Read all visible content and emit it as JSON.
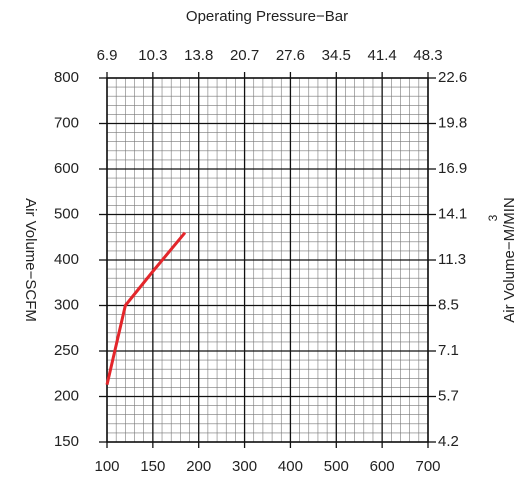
{
  "chart_data": {
    "type": "line",
    "x2label": "Operating Pressure−Bar",
    "ylabel": "Air Volume−SCFM",
    "y2label": "Air Volume−M/MIN",
    "y2label_sup": "3",
    "x": [
      100,
      120,
      150,
      185
    ],
    "series": [
      {
        "color": "#e3262b",
        "values": [
          213,
          300,
          375,
          460
        ]
      }
    ],
    "xlim": [
      100,
      700
    ],
    "xticks": [
      100,
      150,
      200,
      300,
      400,
      500,
      600,
      700
    ],
    "x2lim": [
      6.9,
      48.3
    ],
    "x2ticks": [
      6.9,
      10.3,
      13.8,
      20.7,
      27.6,
      34.5,
      41.4,
      48.3
    ],
    "ylim": [
      150,
      800
    ],
    "yticks": [
      150,
      200,
      250,
      300,
      400,
      500,
      600,
      700,
      800
    ],
    "y2lim": [
      4.2,
      22.6
    ],
    "y2ticks": [
      4.2,
      5.7,
      7.1,
      8.5,
      11.3,
      14.1,
      16.9,
      19.8,
      22.6
    ],
    "grid": true
  }
}
